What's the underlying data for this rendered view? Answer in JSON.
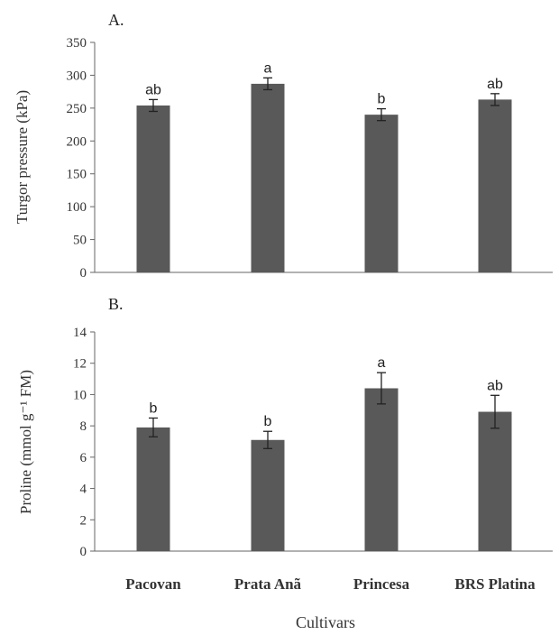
{
  "figure": {
    "xlabel": "Cultivars",
    "categories": [
      "Pacovan",
      "Prata  Anã",
      "Princesa",
      "BRS Platina"
    ]
  },
  "chart_data": [
    {
      "type": "bar",
      "panel": "A.",
      "ylabel": "Turgor pressure (kPa)",
      "categories": [
        "Pacovan",
        "Prata Anã",
        "Princesa",
        "BRS Platina"
      ],
      "values": [
        254,
        287,
        240,
        263
      ],
      "error": [
        9,
        9,
        9,
        9
      ],
      "letters": [
        "ab",
        "a",
        "b",
        "ab"
      ],
      "ylim": [
        0,
        350
      ],
      "yticks": [
        0,
        50,
        100,
        150,
        200,
        250,
        300,
        350
      ],
      "bar_color": "#595959"
    },
    {
      "type": "bar",
      "panel": "B.",
      "ylabel": "Proline (mmol g⁻¹ FM)",
      "categories": [
        "Pacovan",
        "Prata Anã",
        "Princesa",
        "BRS Platina"
      ],
      "values": [
        7.9,
        7.1,
        10.4,
        8.9
      ],
      "error": [
        0.6,
        0.55,
        1.0,
        1.05
      ],
      "letters": [
        "b",
        "b",
        "a",
        "ab"
      ],
      "ylim": [
        0,
        14
      ],
      "yticks": [
        0,
        2,
        4,
        6,
        8,
        10,
        12,
        14
      ],
      "bar_color": "#595959"
    }
  ]
}
